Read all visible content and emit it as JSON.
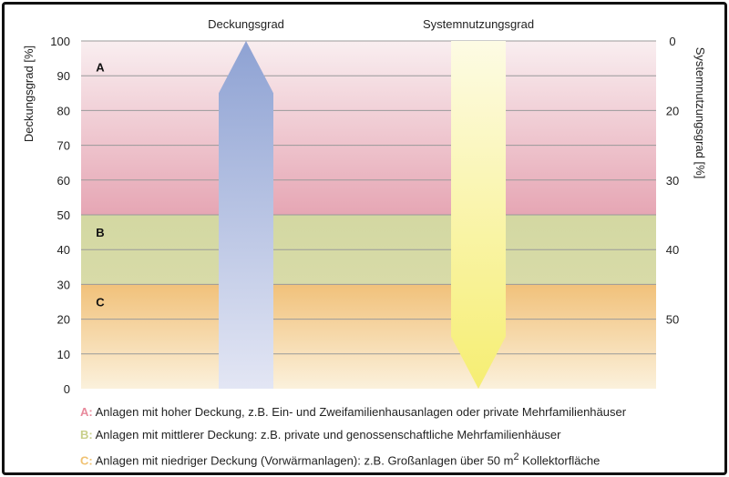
{
  "chart_data": {
    "type": "area",
    "title": "",
    "top_labels": {
      "left": "Deckungsgrad",
      "right": "Systemnutzungsgrad"
    },
    "y_left": {
      "label": "Deckungsgrad [%]",
      "ylim": [
        0,
        100
      ],
      "ticks": [
        0,
        10,
        20,
        30,
        40,
        50,
        60,
        70,
        80,
        90,
        100
      ]
    },
    "y_right": {
      "label": "Systemnutzungsgrad [%]",
      "ticks": [
        0,
        20,
        30,
        40,
        50
      ],
      "inverted": true
    },
    "zones": [
      {
        "letter": "A",
        "from": 50,
        "to": 100,
        "color": "#e4a6b4"
      },
      {
        "letter": "B",
        "from": 30,
        "to": 50,
        "color": "#d2d6a0"
      },
      {
        "letter": "C",
        "from": 0,
        "to": 30,
        "color": "#f2c47e"
      }
    ],
    "arrows": [
      {
        "name": "Deckungsgrad",
        "direction": "up",
        "color": "#8fa3d4"
      },
      {
        "name": "Systemnutzungsgrad",
        "direction": "down",
        "color": "#f7f07a"
      }
    ]
  },
  "legend": [
    {
      "key": "A:",
      "color": "#e88a9c",
      "text": "Anlagen mit hoher Deckung, z.B. Ein- und Zweifamilienhausanlagen oder private Mehrfamilienhäuser"
    },
    {
      "key": "B:",
      "color": "#c8cf8a",
      "text": "Anlagen mit mittlerer Deckung: z.B. private und genossenschaftliche Mehrfamilienhäuser"
    },
    {
      "key": "C:",
      "color": "#f0c272",
      "text_before": "Anlagen mit niedriger Deckung (Vorwärmanlagen): z.B. Großanlagen über 50 m",
      "sup": "2",
      "text_after": " Kollektorfläche"
    }
  ]
}
